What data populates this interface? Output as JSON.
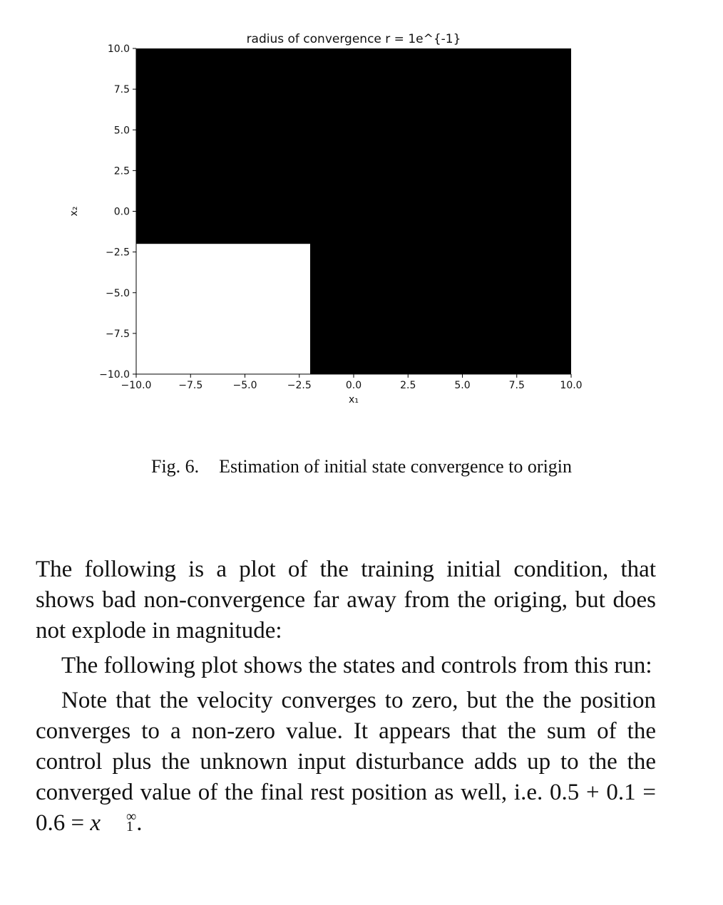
{
  "figure": {
    "caption_number": "Fig. 6.",
    "caption_text": "Estimation of initial state convergence to origin"
  },
  "chart_data": {
    "type": "heatmap",
    "title": "radius of convergence r = 1e^{-1}",
    "xlabel": "x₁",
    "ylabel": "x₂",
    "xlim": [
      -10.0,
      10.0
    ],
    "ylim": [
      -10.0,
      10.0
    ],
    "xticks": [
      "−10.0",
      "−7.5",
      "−5.0",
      "−2.5",
      "0.0",
      "2.5",
      "5.0",
      "7.5",
      "10.0"
    ],
    "yticks": [
      "10.0",
      "7.5",
      "5.0",
      "2.5",
      "0.0",
      "−2.5",
      "−5.0",
      "−7.5",
      "−10.0"
    ],
    "xtick_values": [
      -10.0,
      -7.5,
      -5.0,
      -2.5,
      0.0,
      2.5,
      5.0,
      7.5,
      10.0
    ],
    "ytick_values": [
      10.0,
      7.5,
      5.0,
      2.5,
      0.0,
      -2.5,
      -5.0,
      -7.5,
      -10.0
    ],
    "regions": [
      {
        "value": "black",
        "x": [
          -10.0,
          10.0
        ],
        "y": [
          -10.0,
          10.0
        ]
      },
      {
        "value": "white",
        "x": [
          -10.0,
          -2.0
        ],
        "y": [
          -10.0,
          -2.0
        ]
      }
    ],
    "grid": false
  },
  "paragraphs": [
    "The following is a plot of the training initial condition, that shows bad non-convergence far away from the origing, but does not explode in magnitude:",
    "The following plot shows the states and controls from this run:",
    "Note that the velocity converges to zero, but the the position converges to a non-zero value. It appears that the sum of the control plus the unknown input disturbance adds up to the the converged value of the final rest position as well, i.e."
  ],
  "equation": {
    "lhs": "0.5 + 0.1 = 0.6 = ",
    "var": "x",
    "sup": "∞",
    "sub": "1",
    "end": "."
  }
}
